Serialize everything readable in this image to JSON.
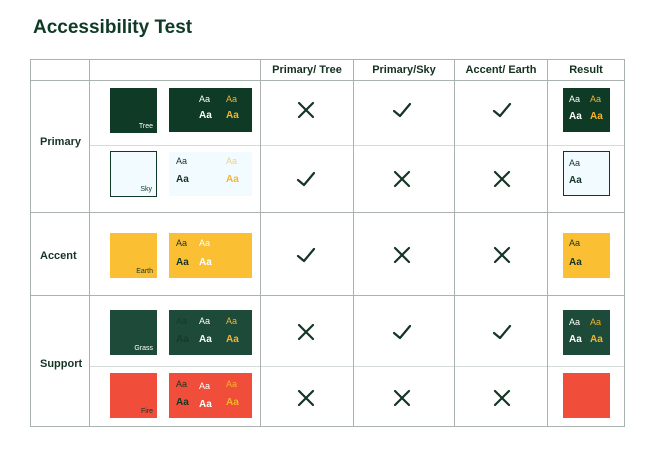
{
  "page": {
    "title": "Accessibility Test"
  },
  "headers": [
    "Primary/ Tree",
    "Primary/Sky",
    "Accent/ Earth",
    "Result"
  ],
  "groups": [
    "Primary",
    "Accent",
    "Support"
  ],
  "colors": {
    "tree": "#0f3a25",
    "sky": "#f2fbff",
    "earth": "#fbbf34",
    "grass": "#1e4a3a",
    "fire": "#f04d3a",
    "white": "#ffffff",
    "gold": "#f5b52c",
    "ink": "#143526",
    "mark": "#143526"
  },
  "rows": [
    {
      "group": "Primary",
      "swatch": "Tree",
      "checks": [
        "x",
        "check",
        "check"
      ]
    },
    {
      "group": "Primary",
      "swatch": "Sky",
      "checks": [
        "check",
        "x",
        "x"
      ]
    },
    {
      "group": "Accent",
      "swatch": "Earth",
      "checks": [
        "check",
        "x",
        "x"
      ]
    },
    {
      "group": "Support",
      "swatch": "Grass",
      "checks": [
        "x",
        "check",
        "check"
      ]
    },
    {
      "group": "Support",
      "swatch": "Fire",
      "checks": [
        "x",
        "x",
        "x"
      ]
    }
  ],
  "sample_text": "Aa"
}
